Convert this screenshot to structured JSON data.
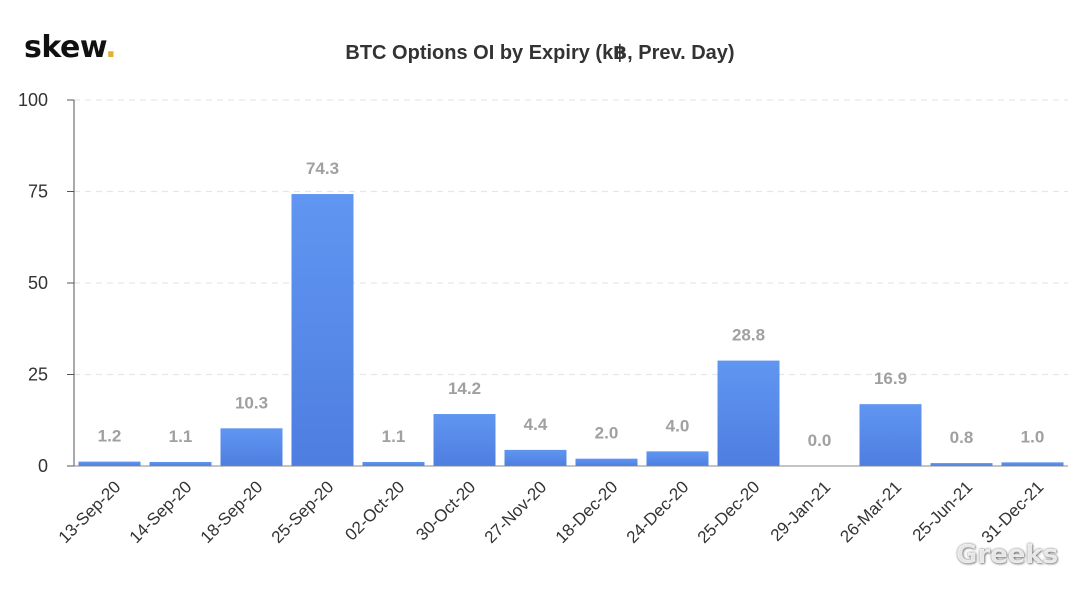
{
  "brand": {
    "name": "skew",
    "dot": "."
  },
  "watermark": {
    "text": "Greeks",
    "icon": "wechat-icon"
  },
  "chart_data": {
    "type": "bar",
    "title": "BTC Options OI by Expiry (k฿, Prev. Day)",
    "xlabel": "",
    "ylabel": "",
    "ylim": [
      0,
      100
    ],
    "yticks": [
      0,
      25,
      50,
      75,
      100
    ],
    "grid": true,
    "categories": [
      "13-Sep-20",
      "14-Sep-20",
      "18-Sep-20",
      "25-Sep-20",
      "02-Oct-20",
      "30-Oct-20",
      "27-Nov-20",
      "18-Dec-20",
      "24-Dec-20",
      "25-Dec-20",
      "29-Jan-21",
      "26-Mar-21",
      "25-Jun-21",
      "31-Dec-21"
    ],
    "values": [
      1.2,
      1.1,
      10.3,
      74.3,
      1.1,
      14.2,
      4.4,
      2.0,
      4.0,
      28.8,
      0.0,
      16.9,
      0.8,
      1.0
    ],
    "data_labels": [
      "1.2",
      "1.1",
      "10.3",
      "74.3",
      "1.1",
      "14.2",
      "4.4",
      "2.0",
      "4.0",
      "28.8",
      "0.0",
      "16.9",
      "0.8",
      "1.0"
    ],
    "colors": {
      "bar_top": "#6096f2",
      "bar_bottom": "#4e7ee0",
      "label": "#a0a0a0",
      "grid": "#e6e6e6",
      "axis": "#555555"
    }
  }
}
